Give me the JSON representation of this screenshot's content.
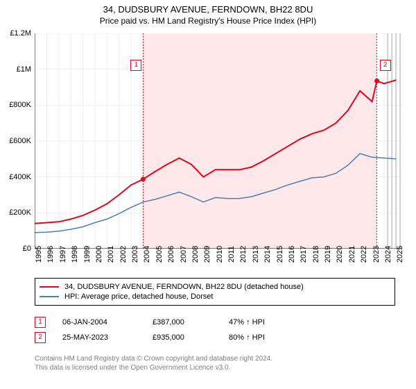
{
  "title_line1": "34, DUDSBURY AVENUE, FERNDOWN, BH22 8DU",
  "title_line2": "Price paid vs. HM Land Registry's House Price Index (HPI)",
  "chart": {
    "type": "line",
    "background_color": "#ffffff",
    "grid_color": "#eeeeee",
    "axis_color": "#000000",
    "xlim": [
      1995,
      2025.5
    ],
    "ylim": [
      0,
      1200000
    ],
    "ytick_step": 200000,
    "ytick_labels": [
      "£0",
      "£200K",
      "£400K",
      "£600K",
      "£800K",
      "£1M",
      "£1.2M"
    ],
    "xtick_years": [
      1995,
      1996,
      1997,
      1998,
      1999,
      2000,
      2001,
      2002,
      2003,
      2004,
      2005,
      2006,
      2007,
      2008,
      2009,
      2010,
      2011,
      2012,
      2013,
      2014,
      2015,
      2016,
      2017,
      2018,
      2019,
      2020,
      2021,
      2022,
      2023,
      2024,
      2025
    ],
    "highlight_band": {
      "from_year": 2004.0,
      "to_year": 2023.4,
      "color": "#ffe8ea"
    },
    "hatched_band": {
      "from_year": 2024.3,
      "to_year": 2025.5
    },
    "series": [
      {
        "name": "property",
        "color": "#e3071c",
        "line_width": 2,
        "x": [
          1995,
          1996,
          1997,
          1998,
          1999,
          2000,
          2001,
          2002,
          2003,
          2004,
          2005,
          2006,
          2007,
          2008,
          2009,
          2010,
          2011,
          2012,
          2013,
          2014,
          2015,
          2016,
          2017,
          2018,
          2019,
          2020,
          2021,
          2022,
          2023,
          2023.4,
          2024,
          2025
        ],
        "y": [
          140000,
          145000,
          150000,
          165000,
          185000,
          215000,
          250000,
          300000,
          355000,
          387000,
          430000,
          470000,
          505000,
          470000,
          400000,
          440000,
          440000,
          440000,
          455000,
          490000,
          530000,
          570000,
          610000,
          640000,
          660000,
          700000,
          770000,
          880000,
          820000,
          935000,
          920000,
          940000
        ]
      },
      {
        "name": "hpi",
        "color": "#4a7fb5",
        "line_width": 1.5,
        "x": [
          1995,
          1996,
          1997,
          1998,
          1999,
          2000,
          2001,
          2002,
          2003,
          2004,
          2005,
          2006,
          2007,
          2008,
          2009,
          2010,
          2011,
          2012,
          2013,
          2014,
          2015,
          2016,
          2017,
          2018,
          2019,
          2020,
          2021,
          2022,
          2023,
          2024,
          2025
        ],
        "y": [
          90000,
          92000,
          98000,
          108000,
          122000,
          145000,
          165000,
          195000,
          230000,
          260000,
          275000,
          295000,
          315000,
          290000,
          260000,
          285000,
          280000,
          280000,
          290000,
          310000,
          330000,
          355000,
          375000,
          395000,
          400000,
          420000,
          465000,
          530000,
          510000,
          505000,
          500000
        ]
      }
    ],
    "markers": [
      {
        "label": "1",
        "year": 2004.0,
        "value": 387000,
        "color": "#e3071c"
      },
      {
        "label": "2",
        "year": 2023.4,
        "value": 935000,
        "color": "#e3071c"
      }
    ]
  },
  "legend": {
    "items": [
      {
        "color": "#e3071c",
        "label": "34, DUDSBURY AVENUE, FERNDOWN, BH22 8DU (detached house)"
      },
      {
        "color": "#4a7fb5",
        "label": "HPI: Average price, detached house, Dorset"
      }
    ]
  },
  "transactions": [
    {
      "marker": "1",
      "color": "#e3071c",
      "date": "06-JAN-2004",
      "price": "£387,000",
      "pct": "47% ↑ HPI"
    },
    {
      "marker": "2",
      "color": "#e3071c",
      "date": "25-MAY-2023",
      "price": "£935,000",
      "pct": "80% ↑ HPI"
    }
  ],
  "footnote_line1": "Contains HM Land Registry data © Crown copyright and database right 2024.",
  "footnote_line2": "This data is licensed under the Open Government Licence v3.0."
}
